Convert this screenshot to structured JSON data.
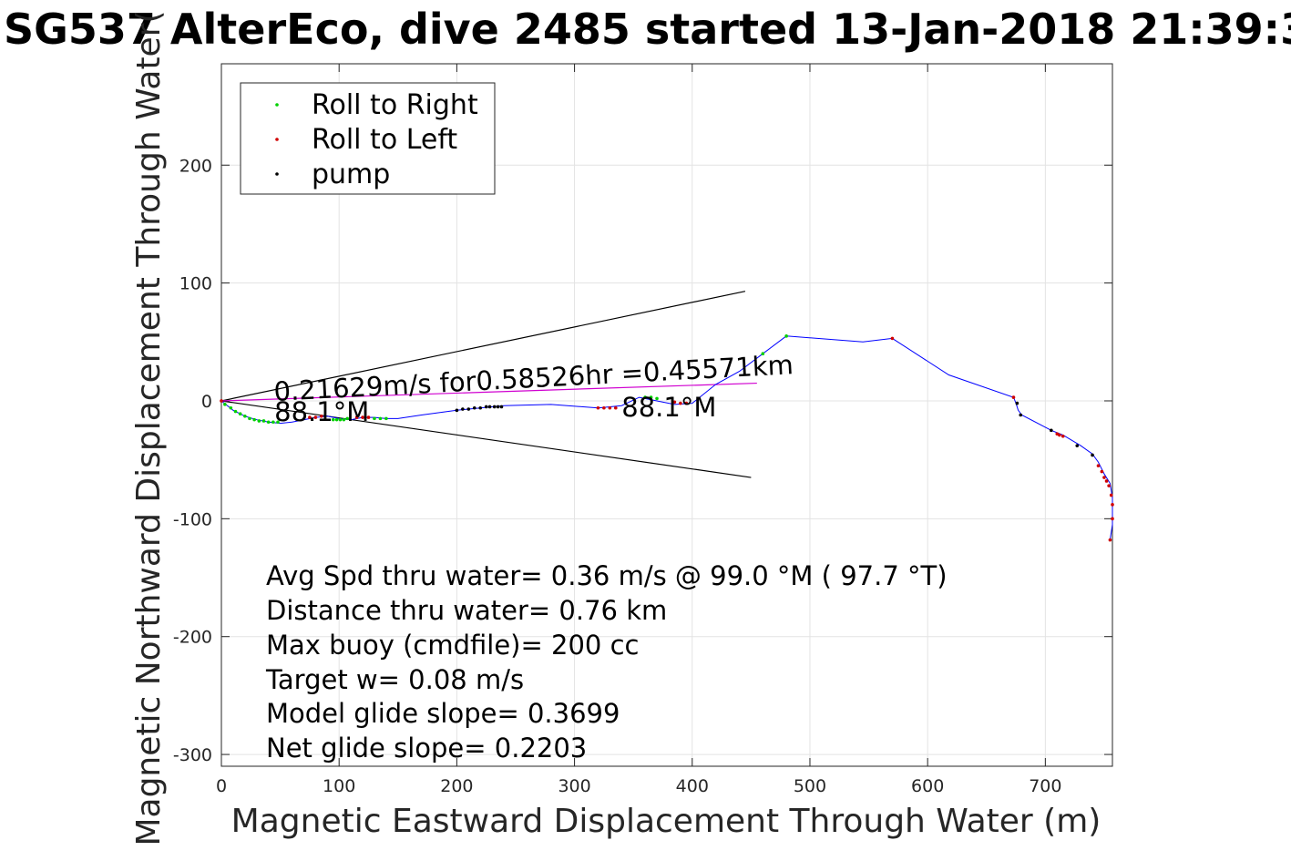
{
  "chart_data": {
    "type": "line",
    "title": "SG537 AlterEco, dive 2485 started 13-Jan-2018 21:39:3",
    "xlabel": "Magnetic Eastward Displacement Through Water (m)",
    "ylabel": "Magnetic Northward Displacement Through Water(",
    "xlim": [
      0,
      757
    ],
    "ylim": [
      -310,
      286
    ],
    "xticks": [
      0,
      100,
      200,
      300,
      400,
      500,
      600,
      700
    ],
    "yticks": [
      -300,
      -200,
      -100,
      0,
      100,
      200
    ],
    "xtick_labels": [
      "0",
      "100",
      "200",
      "300",
      "400",
      "500",
      "600",
      "700"
    ],
    "ytick_labels": [
      "-300",
      "-200",
      "-100",
      "0",
      "100",
      "200"
    ],
    "grid": true,
    "legend_position": "top-left",
    "legend": [
      {
        "label": "Roll to Right",
        "color": "#00d000"
      },
      {
        "label": "Roll to Left",
        "color": "#d00000"
      },
      {
        "label": "pump",
        "color": "#000000"
      }
    ],
    "track": {
      "color": "#0000ff",
      "x": [
        0,
        10,
        20,
        30,
        40,
        50,
        60,
        70,
        80,
        90,
        100,
        110,
        120,
        130,
        140,
        150,
        170,
        200,
        220,
        240,
        280,
        320,
        340,
        355,
        370,
        385,
        400,
        420,
        440,
        460,
        480,
        545,
        570,
        618,
        673,
        675,
        677,
        680,
        705,
        715,
        730,
        740,
        745,
        750,
        755,
        757,
        757,
        757,
        755
      ],
      "y": [
        0,
        -8,
        -13,
        -16,
        -18,
        -19,
        -18,
        -16,
        -14,
        -13,
        -15,
        -16,
        -14,
        -14,
        -15,
        -15,
        -12,
        -8,
        -6,
        -4,
        -3,
        -6,
        -4,
        3,
        0,
        -3,
        -2,
        14,
        25,
        40,
        55,
        50,
        53,
        22,
        3,
        -2,
        -8,
        -12,
        -25,
        -29,
        -38,
        -45,
        -52,
        -62,
        -70,
        -82,
        -95,
        -105,
        -118
      ]
    },
    "roll_right_points": {
      "x": [
        3,
        8,
        12,
        16,
        20,
        24,
        28,
        32,
        36,
        40,
        44,
        48,
        95,
        98,
        101,
        104,
        107,
        130,
        135,
        140,
        360,
        365,
        370,
        460,
        480
      ],
      "y": [
        -3,
        -6,
        -9,
        -11,
        -13,
        -15,
        -16,
        -17,
        -17,
        -18,
        -18,
        -18,
        -16,
        -16,
        -16,
        -16,
        -15,
        -15,
        -15,
        -15,
        3,
        3,
        2,
        40,
        55
      ]
    },
    "roll_left_points": {
      "x": [
        0,
        75,
        80,
        85,
        115,
        120,
        125,
        320,
        325,
        330,
        335,
        385,
        390,
        395,
        570,
        673,
        710,
        712,
        715,
        745,
        748,
        750,
        752,
        754,
        756,
        757,
        757,
        755
      ],
      "y": [
        0,
        -14,
        -14,
        -13,
        -14,
        -14,
        -14,
        -6,
        -6,
        -6,
        -6,
        -1,
        -2,
        -2,
        53,
        3,
        -28,
        -29,
        -30,
        -55,
        -60,
        -65,
        -68,
        -72,
        -80,
        -88,
        -100,
        -118
      ]
    },
    "pump_points": {
      "x": [
        200,
        205,
        210,
        215,
        220,
        225,
        228,
        232,
        235,
        238,
        676,
        679,
        705,
        727,
        740
      ],
      "y": [
        -8,
        -7,
        -7,
        -6,
        -6,
        -5,
        -5,
        -5,
        -5,
        -5,
        -2,
        -12,
        -25,
        -38,
        -46
      ]
    },
    "heading_wedge": {
      "color": "#000000",
      "origin": [
        0,
        0
      ],
      "upper_end": [
        445,
        93
      ],
      "lower_end": [
        450,
        -65
      ]
    },
    "mean_vector": {
      "color": "#d000d0",
      "from": [
        0,
        0
      ],
      "to": [
        455,
        15
      ]
    },
    "annotations": [
      {
        "text": "0.21629m/s for0.58526hr =0.45571km",
        "x": 45,
        "y": 0,
        "rotation": -3
      },
      {
        "text": "88.1°M",
        "x": 45,
        "y": -17,
        "rotation": 0
      },
      {
        "text": "88.1°M",
        "x": 340,
        "y": -13,
        "rotation": 0
      }
    ],
    "stats_lines": [
      "Avg Spd thru water=  0.36 m/s @  99.0 °M ( 97.7 °T)",
      "Distance thru water=  0.76 km",
      "Max buoy (cmdfile)= 200 cc",
      "Target w= 0.08 m/s",
      "Model glide slope= 0.3699",
      "Net glide slope= 0.2203"
    ]
  }
}
